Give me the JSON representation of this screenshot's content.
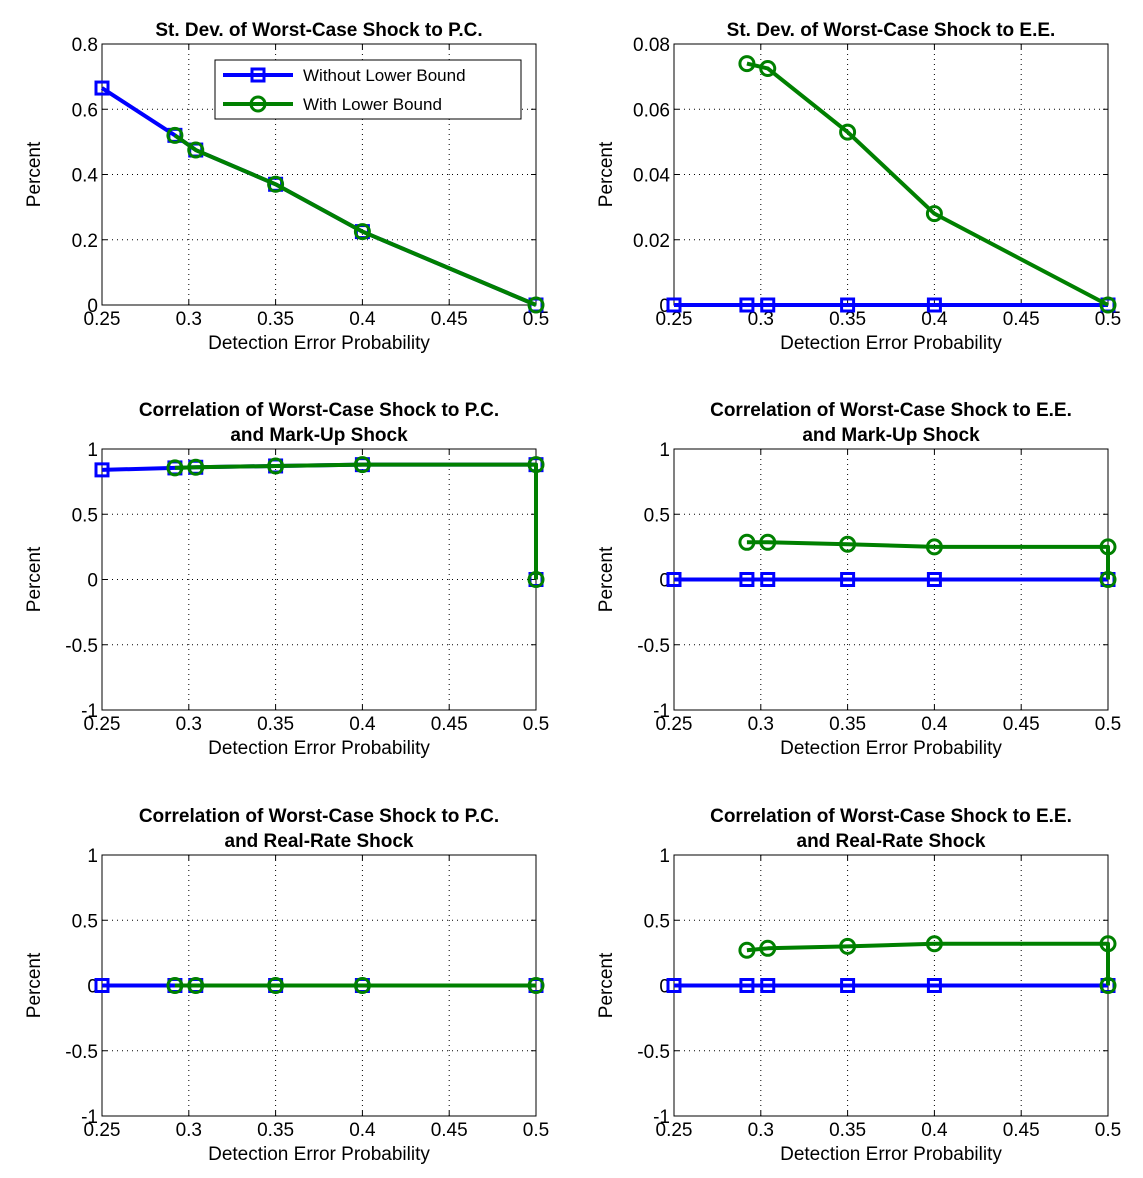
{
  "figure": {
    "background": "#ffffff"
  },
  "series_styles": {
    "Without Lower Bound": {
      "color": "#0000ff",
      "marker": "square"
    },
    "With Lower Bound": {
      "color": "#008000",
      "marker": "circle"
    }
  },
  "chart_data": [
    {
      "type": "line",
      "title": [
        "St. Dev. of Worst-Case Shock to P.C."
      ],
      "xlabel": "Detection Error Probability",
      "ylabel": "Percent",
      "xlim": [
        0.25,
        0.5
      ],
      "ylim": [
        0,
        0.8
      ],
      "xticks": [
        0.25,
        0.3,
        0.35,
        0.4,
        0.45,
        0.5
      ],
      "xtick_labels": [
        "0.25",
        "0.3",
        "0.35",
        "0.4",
        "0.45",
        "0.5"
      ],
      "yticks": [
        0,
        0.2,
        0.4,
        0.6,
        0.8
      ],
      "ytick_labels": [
        "0",
        "0.2",
        "0.4",
        "0.6",
        "0.8"
      ],
      "grid": true,
      "legend": {
        "placement": "top-right",
        "entries": [
          "Without Lower Bound",
          "With Lower Bound"
        ]
      },
      "series": [
        {
          "name": "Without Lower Bound",
          "x": [
            0.25,
            0.292,
            0.304,
            0.35,
            0.4,
            0.5
          ],
          "y": [
            0.665,
            0.52,
            0.475,
            0.37,
            0.225,
            0.0
          ]
        },
        {
          "name": "With Lower Bound",
          "x": [
            0.292,
            0.304,
            0.35,
            0.4,
            0.5
          ],
          "y": [
            0.52,
            0.475,
            0.37,
            0.225,
            0.0
          ]
        }
      ]
    },
    {
      "type": "line",
      "title": [
        "St. Dev. of Worst-Case Shock to E.E."
      ],
      "xlabel": "Detection Error Probability",
      "ylabel": "Percent",
      "xlim": [
        0.25,
        0.5
      ],
      "ylim": [
        0,
        0.08
      ],
      "xticks": [
        0.25,
        0.3,
        0.35,
        0.4,
        0.45,
        0.5
      ],
      "xtick_labels": [
        "0.25",
        "0.3",
        "0.35",
        "0.4",
        "0.45",
        "0.5"
      ],
      "yticks": [
        0,
        0.02,
        0.04,
        0.06,
        0.08
      ],
      "ytick_labels": [
        "0",
        "0.02",
        "0.04",
        "0.06",
        "0.08"
      ],
      "grid": true,
      "series": [
        {
          "name": "Without Lower Bound",
          "x": [
            0.25,
            0.292,
            0.304,
            0.35,
            0.4,
            0.5
          ],
          "y": [
            0,
            0,
            0,
            0,
            0,
            0
          ]
        },
        {
          "name": "With Lower Bound",
          "x": [
            0.292,
            0.304,
            0.35,
            0.4,
            0.5
          ],
          "y": [
            0.074,
            0.0725,
            0.053,
            0.028,
            0.0
          ]
        }
      ]
    },
    {
      "type": "line",
      "title": [
        "Correlation of Worst-Case Shock to P.C.",
        "and Mark-Up Shock"
      ],
      "xlabel": "Detection Error Probability",
      "ylabel": "Percent",
      "xlim": [
        0.25,
        0.5
      ],
      "ylim": [
        -1,
        1
      ],
      "xticks": [
        0.25,
        0.3,
        0.35,
        0.4,
        0.45,
        0.5
      ],
      "xtick_labels": [
        "0.25",
        "0.3",
        "0.35",
        "0.4",
        "0.45",
        "0.5"
      ],
      "yticks": [
        -1,
        -0.5,
        0,
        0.5,
        1
      ],
      "ytick_labels": [
        "-1",
        "-0.5",
        "0",
        "0.5",
        "1"
      ],
      "grid": true,
      "series": [
        {
          "name": "Without Lower Bound",
          "x": [
            0.25,
            0.292,
            0.304,
            0.35,
            0.4,
            0.5,
            0.5
          ],
          "y": [
            0.84,
            0.855,
            0.86,
            0.87,
            0.88,
            0.88,
            0.0
          ]
        },
        {
          "name": "With Lower Bound",
          "x": [
            0.292,
            0.304,
            0.35,
            0.4,
            0.5,
            0.5
          ],
          "y": [
            0.855,
            0.86,
            0.87,
            0.88,
            0.88,
            0.0
          ]
        }
      ]
    },
    {
      "type": "line",
      "title": [
        "Correlation of Worst-Case Shock to E.E.",
        "and Mark-Up Shock"
      ],
      "xlabel": "Detection Error Probability",
      "ylabel": "Percent",
      "xlim": [
        0.25,
        0.5
      ],
      "ylim": [
        -1,
        1
      ],
      "xticks": [
        0.25,
        0.3,
        0.35,
        0.4,
        0.45,
        0.5
      ],
      "xtick_labels": [
        "0.25",
        "0.3",
        "0.35",
        "0.4",
        "0.45",
        "0.5"
      ],
      "yticks": [
        -1,
        -0.5,
        0,
        0.5,
        1
      ],
      "ytick_labels": [
        "-1",
        "-0.5",
        "0",
        "0.5",
        "1"
      ],
      "grid": true,
      "series": [
        {
          "name": "Without Lower Bound",
          "x": [
            0.25,
            0.292,
            0.304,
            0.35,
            0.4,
            0.5
          ],
          "y": [
            0,
            0,
            0,
            0,
            0,
            0
          ]
        },
        {
          "name": "With Lower Bound",
          "x": [
            0.292,
            0.304,
            0.35,
            0.4,
            0.5,
            0.5
          ],
          "y": [
            0.285,
            0.285,
            0.27,
            0.25,
            0.25,
            0.0
          ]
        }
      ]
    },
    {
      "type": "line",
      "title": [
        "Correlation of Worst-Case Shock to P.C.",
        "and Real-Rate Shock"
      ],
      "xlabel": "Detection Error Probability",
      "ylabel": "Percent",
      "xlim": [
        0.25,
        0.5
      ],
      "ylim": [
        -1,
        1
      ],
      "xticks": [
        0.25,
        0.3,
        0.35,
        0.4,
        0.45,
        0.5
      ],
      "xtick_labels": [
        "0.25",
        "0.3",
        "0.35",
        "0.4",
        "0.45",
        "0.5"
      ],
      "yticks": [
        -1,
        -0.5,
        0,
        0.5,
        1
      ],
      "ytick_labels": [
        "-1",
        "-0.5",
        "0",
        "0.5",
        "1"
      ],
      "grid": true,
      "series": [
        {
          "name": "Without Lower Bound",
          "x": [
            0.25,
            0.292,
            0.304,
            0.35,
            0.4,
            0.5
          ],
          "y": [
            0,
            0,
            0,
            0,
            0,
            0
          ]
        },
        {
          "name": "With Lower Bound",
          "x": [
            0.292,
            0.304,
            0.35,
            0.4,
            0.5
          ],
          "y": [
            0,
            0,
            0,
            0,
            0
          ]
        }
      ]
    },
    {
      "type": "line",
      "title": [
        "Correlation of Worst-Case Shock to E.E.",
        "and Real-Rate Shock"
      ],
      "xlabel": "Detection Error Probability",
      "ylabel": "Percent",
      "xlim": [
        0.25,
        0.5
      ],
      "ylim": [
        -1,
        1
      ],
      "xticks": [
        0.25,
        0.3,
        0.35,
        0.4,
        0.45,
        0.5
      ],
      "xtick_labels": [
        "0.25",
        "0.3",
        "0.35",
        "0.4",
        "0.45",
        "0.5"
      ],
      "yticks": [
        -1,
        -0.5,
        0,
        0.5,
        1
      ],
      "ytick_labels": [
        "-1",
        "-0.5",
        "0",
        "0.5",
        "1"
      ],
      "grid": true,
      "series": [
        {
          "name": "Without Lower Bound",
          "x": [
            0.25,
            0.292,
            0.304,
            0.35,
            0.4,
            0.5
          ],
          "y": [
            0,
            0,
            0,
            0,
            0,
            0
          ]
        },
        {
          "name": "With Lower Bound",
          "x": [
            0.292,
            0.304,
            0.35,
            0.4,
            0.5,
            0.5
          ],
          "y": [
            0.27,
            0.285,
            0.3,
            0.32,
            0.32,
            0.0
          ]
        }
      ]
    }
  ]
}
